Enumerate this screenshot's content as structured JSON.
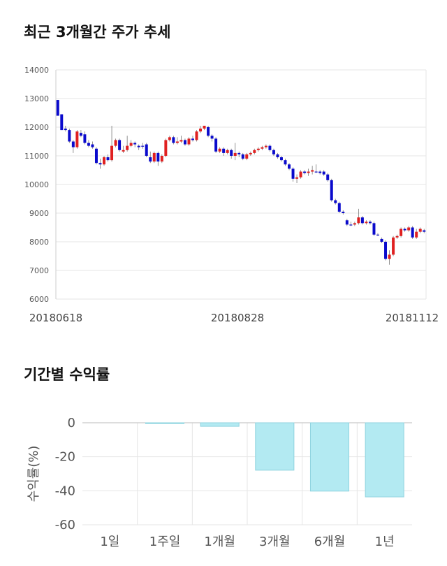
{
  "section1": {
    "title": "최근 3개월간 주가 추세"
  },
  "section2": {
    "title": "기간별 수익률"
  },
  "colors": {
    "up": "#e02020",
    "down": "#0a0acc",
    "bar": "#b3eaf2",
    "bar_stroke": "#8fd3df",
    "grid": "#e6e6e6"
  },
  "chart_data": [
    {
      "type": "candlestick",
      "title": "최근 3개월간 주가 추세",
      "ylim": [
        6000,
        14000
      ],
      "yticks": [
        "14000",
        "13000",
        "12000",
        "11000",
        "10000",
        "9000",
        "8000",
        "7000",
        "6000"
      ],
      "xticks": [
        "20180618",
        "20180828",
        "20181112"
      ],
      "grid": true,
      "candles": [
        [
          12950,
          12400,
          12450,
          12950
        ],
        [
          12450,
          11900,
          11900,
          12450
        ],
        [
          11950,
          11900,
          11850,
          12050
        ],
        [
          11900,
          11500,
          11450,
          11950
        ],
        [
          11500,
          11300,
          11100,
          11550
        ],
        [
          11300,
          11850,
          11250,
          11900
        ],
        [
          11800,
          11700,
          11650,
          11900
        ],
        [
          11750,
          11450,
          11400,
          11850
        ],
        [
          11450,
          11350,
          11300,
          11550
        ],
        [
          11400,
          11300,
          11250,
          11500
        ],
        [
          11250,
          10750,
          10700,
          11300
        ],
        [
          10750,
          10700,
          10550,
          10900
        ],
        [
          10700,
          10950,
          10650,
          11000
        ],
        [
          10950,
          10850,
          10800,
          11050
        ],
        [
          10850,
          11350,
          10800,
          12050
        ],
        [
          11350,
          11550,
          11300,
          11600
        ],
        [
          11550,
          11200,
          11150,
          11600
        ],
        [
          11150,
          11200,
          11100,
          11350
        ],
        [
          11200,
          11350,
          11150,
          11700
        ],
        [
          11350,
          11450,
          11300,
          11550
        ],
        [
          11450,
          11400,
          11300,
          11500
        ],
        [
          11350,
          11300,
          11200,
          11400
        ],
        [
          11350,
          11350,
          11250,
          11450
        ],
        [
          11400,
          11000,
          10950,
          11450
        ],
        [
          10950,
          10800,
          10750,
          11150
        ],
        [
          10800,
          11100,
          10750,
          11150
        ],
        [
          11100,
          10800,
          10650,
          11150
        ],
        [
          10800,
          11000,
          10750,
          11050
        ],
        [
          11000,
          11550,
          10950,
          11600
        ],
        [
          11550,
          11650,
          11500,
          11700
        ],
        [
          11650,
          11450,
          11400,
          11700
        ],
        [
          11450,
          11500,
          11400,
          11650
        ],
        [
          11500,
          11550,
          11450,
          11700
        ],
        [
          11550,
          11400,
          11350,
          11600
        ],
        [
          11400,
          11600,
          11350,
          11650
        ],
        [
          11600,
          11550,
          11500,
          11700
        ],
        [
          11550,
          11850,
          11500,
          11900
        ],
        [
          11850,
          11950,
          11800,
          12050
        ],
        [
          11950,
          12050,
          11900,
          12050
        ],
        [
          12000,
          11700,
          11650,
          12050
        ],
        [
          11700,
          11600,
          11500,
          11750
        ],
        [
          11600,
          11150,
          11100,
          11650
        ],
        [
          11150,
          11250,
          11100,
          11300
        ],
        [
          11250,
          11100,
          11000,
          11300
        ],
        [
          11100,
          11200,
          11050,
          11250
        ],
        [
          11200,
          11000,
          10900,
          11250
        ],
        [
          11000,
          11100,
          10850,
          11450
        ],
        [
          11100,
          11050,
          10950,
          11150
        ],
        [
          11050,
          10900,
          10850,
          11100
        ],
        [
          10900,
          11050,
          10850,
          11100
        ],
        [
          11050,
          11100,
          11000,
          11150
        ],
        [
          11100,
          11200,
          11050,
          11250
        ],
        [
          11200,
          11250,
          11150,
          11300
        ],
        [
          11250,
          11300,
          11200,
          11350
        ],
        [
          11300,
          11350,
          11250,
          11400
        ],
        [
          11350,
          11200,
          11150,
          11400
        ],
        [
          11200,
          11050,
          11000,
          11250
        ],
        [
          11050,
          10950,
          10900,
          11100
        ],
        [
          10950,
          10850,
          10800,
          11000
        ],
        [
          10850,
          10700,
          10650,
          10900
        ],
        [
          10700,
          10550,
          10500,
          10750
        ],
        [
          10550,
          10200,
          10100,
          10600
        ],
        [
          10200,
          10250,
          10050,
          10350
        ],
        [
          10250,
          10450,
          10200,
          10500
        ],
        [
          10450,
          10400,
          10350,
          10500
        ],
        [
          10400,
          10450,
          10300,
          10550
        ],
        [
          10450,
          10500,
          10350,
          10650
        ],
        [
          10450,
          10450,
          10400,
          10700
        ],
        [
          10450,
          10400,
          10350,
          10500
        ],
        [
          10450,
          10350,
          10300,
          10500
        ],
        [
          10350,
          10150,
          10100,
          10400
        ],
        [
          10150,
          9450,
          9400,
          10200
        ],
        [
          9450,
          9350,
          9300,
          9500
        ],
        [
          9350,
          9050,
          9000,
          9400
        ],
        [
          9050,
          9000,
          8950,
          9100
        ],
        [
          8750,
          8600,
          8550,
          8800
        ],
        [
          8600,
          8600,
          8550,
          8700
        ],
        [
          8600,
          8650,
          8550,
          8700
        ],
        [
          8650,
          8850,
          8600,
          9150
        ],
        [
          8850,
          8650,
          8600,
          8900
        ],
        [
          8650,
          8700,
          8600,
          8750
        ],
        [
          8700,
          8650,
          8600,
          8750
        ],
        [
          8650,
          8250,
          8200,
          8700
        ],
        [
          8250,
          8250,
          8200,
          8300
        ],
        [
          8100,
          8000,
          7950,
          8150
        ],
        [
          8000,
          7400,
          7350,
          8050
        ],
        [
          7400,
          7550,
          7200,
          7700
        ],
        [
          7550,
          8150,
          7500,
          8200
        ],
        [
          8150,
          8200,
          8100,
          8250
        ],
        [
          8200,
          8450,
          8150,
          8500
        ],
        [
          8450,
          8400,
          8350,
          8500
        ],
        [
          8400,
          8500,
          8350,
          8550
        ],
        [
          8500,
          8150,
          8100,
          8550
        ],
        [
          8150,
          8350,
          8100,
          8450
        ],
        [
          8350,
          8450,
          8300,
          8500
        ],
        [
          8400,
          8350,
          8300,
          8450
        ]
      ]
    },
    {
      "type": "bar",
      "categories": [
        "1일",
        "1주일",
        "1개월",
        "3개월",
        "6개월",
        "1년"
      ],
      "values": [
        0,
        -0.5,
        -2.1,
        -27.9,
        -40.2,
        -43.6
      ],
      "ylabel": "수익률(%)",
      "ylim": [
        -60,
        0
      ],
      "yticks": [
        "0",
        "-20",
        "-40",
        "-60"
      ],
      "grid": true
    }
  ]
}
